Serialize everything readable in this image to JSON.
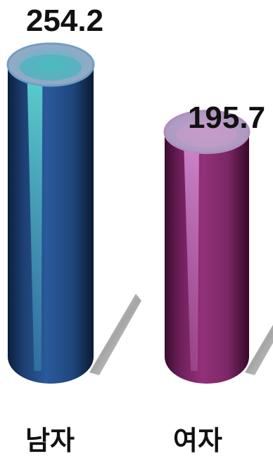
{
  "chart_data": {
    "type": "bar",
    "categories": [
      "남자",
      "여자"
    ],
    "values": [
      254.2,
      195.7
    ],
    "value_labels": [
      "254.2",
      "195.7"
    ],
    "series_colors": [
      "#24508a",
      "#8a2a6e"
    ],
    "title": "",
    "xlabel": "",
    "ylabel": "",
    "grid": false,
    "legend": "none"
  }
}
